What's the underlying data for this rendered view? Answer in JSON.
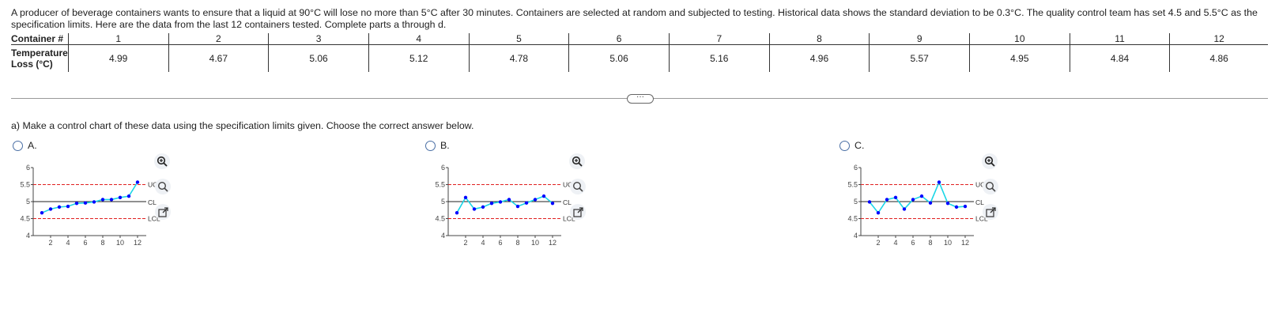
{
  "problem_text": "A producer of beverage containers wants to ensure that a liquid at 90°C will lose no more than 5°C after 30 minutes. Containers are selected at random and subjected to testing. Historical data shows the standard deviation to be 0.3°C. The quality control team has set 4.5 and 5.5°C as the specification limits. Here are the data from the last 12 containers tested. Complete parts a through d.",
  "table": {
    "header_label": "Container #",
    "value_label": "Temperature Loss (°C)",
    "containers": [
      "1",
      "2",
      "3",
      "4",
      "5",
      "6",
      "7",
      "8",
      "9",
      "10",
      "11",
      "12"
    ],
    "values": [
      "4.99",
      "4.67",
      "5.06",
      "5.12",
      "4.78",
      "5.06",
      "5.16",
      "4.96",
      "5.57",
      "4.95",
      "4.84",
      "4.86"
    ]
  },
  "more_button": "···",
  "question": "a) Make a control chart of these data using the specification limits given. Choose the correct answer below.",
  "options": [
    {
      "label": "A."
    },
    {
      "label": "B."
    },
    {
      "label": "C."
    }
  ],
  "colors": {
    "line": "#1ad6e6",
    "point": "#0000ff",
    "limit": "#e02020",
    "radio": "#4a6fa5"
  },
  "icons": {
    "zoom": "zoom-in-icon",
    "zoom_small": "zoom-icon",
    "external": "external-link-icon"
  },
  "chart_data": [
    {
      "type": "line",
      "option": "A",
      "x": [
        1,
        2,
        3,
        4,
        5,
        6,
        7,
        8,
        9,
        10,
        11,
        12
      ],
      "y": [
        4.67,
        4.78,
        4.84,
        4.86,
        4.95,
        4.96,
        4.99,
        5.06,
        5.06,
        5.12,
        5.16,
        5.57
      ],
      "ucl": 5.5,
      "cl": 5.0,
      "lcl": 4.5,
      "line_labels": [
        "UCL",
        "CL",
        "LCL"
      ],
      "ylim": [
        4,
        6
      ],
      "xlim": [
        0,
        13
      ],
      "yticks": [
        "4",
        "4.5",
        "5",
        "5.5",
        "6"
      ],
      "xticks": [
        "2",
        "4",
        "6",
        "8",
        "10",
        "12"
      ]
    },
    {
      "type": "line",
      "option": "B",
      "x": [
        1,
        2,
        3,
        4,
        5,
        6,
        7,
        8,
        9,
        10,
        11,
        12
      ],
      "y": [
        4.67,
        5.12,
        4.78,
        4.84,
        4.95,
        4.99,
        5.06,
        4.86,
        4.96,
        5.06,
        5.16,
        4.95
      ],
      "ucl": 5.5,
      "cl": 5.0,
      "lcl": 4.5,
      "line_labels": [
        "UCL",
        "CL",
        "LCL"
      ],
      "ylim": [
        4,
        6
      ],
      "xlim": [
        0,
        13
      ],
      "yticks": [
        "4",
        "4.5",
        "5",
        "5.5",
        "6"
      ],
      "xticks": [
        "2",
        "4",
        "6",
        "8",
        "10",
        "12"
      ]
    },
    {
      "type": "line",
      "option": "C",
      "x": [
        1,
        2,
        3,
        4,
        5,
        6,
        7,
        8,
        9,
        10,
        11,
        12
      ],
      "y": [
        4.99,
        4.67,
        5.06,
        5.12,
        4.78,
        5.06,
        5.16,
        4.96,
        5.57,
        4.95,
        4.84,
        4.86
      ],
      "ucl": 5.5,
      "cl": 5.0,
      "lcl": 4.5,
      "line_labels": [
        "UCL",
        "CL",
        "LCL"
      ],
      "ylim": [
        4,
        6
      ],
      "xlim": [
        0,
        13
      ],
      "yticks": [
        "4",
        "4.5",
        "5",
        "5.5",
        "6"
      ],
      "xticks": [
        "2",
        "4",
        "6",
        "8",
        "10",
        "12"
      ]
    }
  ]
}
